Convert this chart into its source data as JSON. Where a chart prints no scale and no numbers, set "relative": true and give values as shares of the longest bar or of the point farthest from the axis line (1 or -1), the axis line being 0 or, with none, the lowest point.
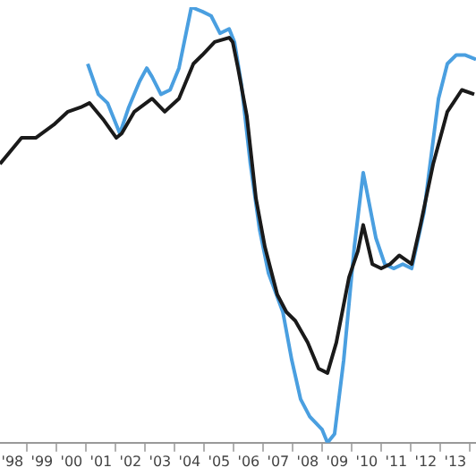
{
  "chart_data": {
    "type": "line",
    "relative": true,
    "xlim": [
      1997.58,
      2013.7
    ],
    "xticks": [
      {
        "value": 1998,
        "label": "'98"
      },
      {
        "value": 1998.5,
        "label": null
      },
      {
        "value": 1999,
        "label": "'99"
      },
      {
        "value": 1999.5,
        "label": null
      },
      {
        "value": 2000,
        "label": "'00"
      },
      {
        "value": 2000.5,
        "label": null
      },
      {
        "value": 2001,
        "label": "'01"
      },
      {
        "value": 2001.5,
        "label": null
      },
      {
        "value": 2002,
        "label": "'02"
      },
      {
        "value": 2002.5,
        "label": null
      },
      {
        "value": 2003,
        "label": "'03"
      },
      {
        "value": 2003.5,
        "label": null
      },
      {
        "value": 2004,
        "label": "'04"
      },
      {
        "value": 2004.5,
        "label": null
      },
      {
        "value": 2005,
        "label": "'05"
      },
      {
        "value": 2005.5,
        "label": null
      },
      {
        "value": 2006,
        "label": "'06"
      },
      {
        "value": 2006.5,
        "label": null
      },
      {
        "value": 2007,
        "label": "'07"
      },
      {
        "value": 2007.5,
        "label": null
      },
      {
        "value": 2008,
        "label": "'08"
      },
      {
        "value": 2008.5,
        "label": null
      },
      {
        "value": 2009,
        "label": "'09"
      },
      {
        "value": 2009.5,
        "label": null
      },
      {
        "value": 2010,
        "label": "'10"
      },
      {
        "value": 2010.5,
        "label": null
      },
      {
        "value": 2011,
        "label": "'11"
      },
      {
        "value": 2011.5,
        "label": null
      },
      {
        "value": 2012,
        "label": "'12"
      },
      {
        "value": 2012.5,
        "label": null
      },
      {
        "value": 2013,
        "label": "'13"
      },
      {
        "value": 2013.5,
        "label": null
      }
    ],
    "grid": false,
    "legend": false,
    "marker": "none",
    "line_style": "solid",
    "series": [
      {
        "color": "#1a1a1a",
        "x": [
          1997.58,
          1998.31,
          1998.79,
          1999.4,
          1999.88,
          2000.31,
          2000.61,
          2001.1,
          2001.52,
          2001.7,
          2002.13,
          2002.73,
          2003.16,
          2003.64,
          2004.13,
          2004.43,
          2004.85,
          2005.34,
          2005.46,
          2005.64,
          2005.94,
          2006.25,
          2006.55,
          2006.97,
          2007.28,
          2007.58,
          2008,
          2008.37,
          2008.67,
          2008.97,
          2009.4,
          2009.7,
          2009.88,
          2010.19,
          2010.49,
          2010.79,
          2011.1,
          2011.52,
          2011.82,
          2012.25,
          2012.73,
          2013.22,
          2013.64
        ],
        "values": [
          0.64,
          0.7,
          0.7,
          0.73,
          0.76,
          0.77,
          0.78,
          0.74,
          0.7,
          0.71,
          0.76,
          0.79,
          0.76,
          0.79,
          0.87,
          0.89,
          0.92,
          0.93,
          0.92,
          0.86,
          0.75,
          0.56,
          0.45,
          0.34,
          0.3,
          0.28,
          0.23,
          0.17,
          0.16,
          0.23,
          0.38,
          0.44,
          0.5,
          0.41,
          0.4,
          0.41,
          0.43,
          0.41,
          0.5,
          0.64,
          0.76,
          0.81,
          0.8
        ]
      },
      {
        "color": "#4a9fe0",
        "x": [
          2000.55,
          2000.91,
          2001.22,
          2001.64,
          2001.94,
          2002.31,
          2002.55,
          2002.73,
          2003.03,
          2003.34,
          2003.64,
          2004.06,
          2004.43,
          2004.73,
          2005.03,
          2005.34,
          2005.52,
          2005.76,
          2006.06,
          2006.37,
          2006.67,
          2007.16,
          2007.46,
          2007.76,
          2008.07,
          2008.49,
          2008.67,
          2008.91,
          2009.22,
          2009.58,
          2009.88,
          2010.31,
          2010.61,
          2010.91,
          2011.22,
          2011.52,
          2011.94,
          2012.43,
          2012.73,
          2013.03,
          2013.34,
          2013.7
        ],
        "values": [
          0.87,
          0.8,
          0.78,
          0.71,
          0.77,
          0.83,
          0.86,
          0.84,
          0.8,
          0.81,
          0.86,
          1,
          0.99,
          0.98,
          0.94,
          0.95,
          0.92,
          0.82,
          0.64,
          0.49,
          0.39,
          0.3,
          0.19,
          0.1,
          0.06,
          0.03,
          0,
          0.02,
          0.19,
          0.45,
          0.62,
          0.47,
          0.41,
          0.4,
          0.41,
          0.4,
          0.53,
          0.79,
          0.87,
          0.89,
          0.89,
          0.88
        ]
      }
    ]
  }
}
